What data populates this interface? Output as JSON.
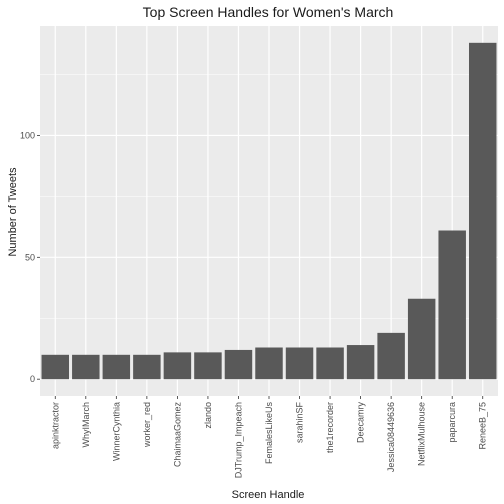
{
  "chart_data": {
    "type": "bar",
    "title": "Top Screen Handles for Women's March",
    "xlabel": "Screen Handle",
    "ylabel": "Number of Tweets",
    "categories": [
      "apinktractor",
      "WhyIMarch",
      "WinnerCynthia",
      "worker_red",
      "ChaimaaGomez",
      "zlando",
      "DJTrump_Impeach",
      "FemalesLikeUs",
      "sarahinSF",
      "the1recorder",
      "Deecamry",
      "Jessica08449636",
      "NetflixMulhouse",
      "paparcura",
      "ReneeB_75"
    ],
    "values": [
      10,
      10,
      10,
      10,
      11,
      11,
      12,
      13,
      13,
      13,
      14,
      19,
      33,
      61,
      138
    ],
    "ylim": [
      -6.9,
      144.9
    ],
    "yticks": [
      0,
      50,
      100
    ],
    "grid": true,
    "bar_color": "#595959",
    "panel_color": "#ebebeb",
    "grid_color": "#ffffff"
  }
}
